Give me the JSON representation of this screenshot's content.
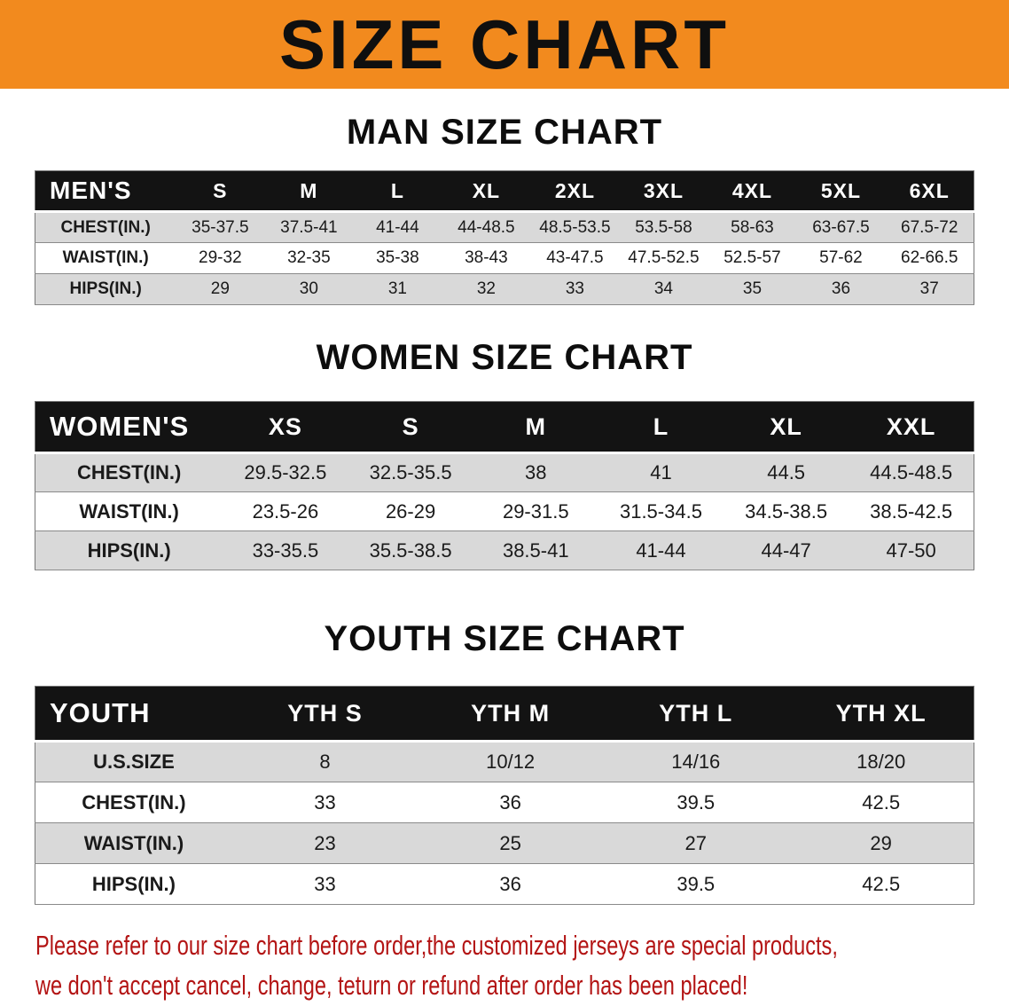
{
  "banner": {
    "title": "SIZE CHART",
    "bg_color": "#f28a1e"
  },
  "sections": [
    {
      "heading": "MAN SIZE CHART",
      "table": {
        "first_col": "MEN'S",
        "sizes": [
          "S",
          "M",
          "L",
          "XL",
          "2XL",
          "3XL",
          "4XL",
          "5XL",
          "6XL"
        ],
        "rows": [
          {
            "label": "CHEST(IN.)",
            "values": [
              "35-37.5",
              "37.5-41",
              "41-44",
              "44-48.5",
              "48.5-53.5",
              "53.5-58",
              "58-63",
              "63-67.5",
              "67.5-72"
            ]
          },
          {
            "label": "WAIST(IN.)",
            "values": [
              "29-32",
              "32-35",
              "35-38",
              "38-43",
              "43-47.5",
              "47.5-52.5",
              "52.5-57",
              "57-62",
              "62-66.5"
            ]
          },
          {
            "label": "HIPS(IN.)",
            "values": [
              "29",
              "30",
              "31",
              "32",
              "33",
              "34",
              "35",
              "36",
              "37"
            ]
          }
        ]
      }
    },
    {
      "heading": "WOMEN SIZE CHART",
      "table": {
        "first_col": "WOMEN'S",
        "sizes": [
          "XS",
          "S",
          "M",
          "L",
          "XL",
          "XXL"
        ],
        "rows": [
          {
            "label": "CHEST(IN.)",
            "values": [
              "29.5-32.5",
              "32.5-35.5",
              "38",
              "41",
              "44.5",
              "44.5-48.5"
            ]
          },
          {
            "label": "WAIST(IN.)",
            "values": [
              "23.5-26",
              "26-29",
              "29-31.5",
              "31.5-34.5",
              "34.5-38.5",
              "38.5-42.5"
            ]
          },
          {
            "label": "HIPS(IN.)",
            "values": [
              "33-35.5",
              "35.5-38.5",
              "38.5-41",
              "41-44",
              "44-47",
              "47-50"
            ]
          }
        ]
      }
    },
    {
      "heading": "YOUTH SIZE CHART",
      "table": {
        "first_col": "YOUTH",
        "sizes": [
          "YTH S",
          "YTH M",
          "YTH L",
          "YTH XL"
        ],
        "rows": [
          {
            "label": "U.S.SIZE",
            "values": [
              "8",
              "10/12",
              "14/16",
              "18/20"
            ]
          },
          {
            "label": "CHEST(IN.)",
            "values": [
              "33",
              "36",
              "39.5",
              "42.5"
            ]
          },
          {
            "label": "WAIST(IN.)",
            "values": [
              "23",
              "25",
              "27",
              "29"
            ]
          },
          {
            "label": "HIPS(IN.)",
            "values": [
              "33",
              "36",
              "39.5",
              "42.5"
            ]
          }
        ]
      }
    }
  ],
  "footer": {
    "color": "#b31414",
    "lines": [
      "Please refer to our size chart before order,the customized jerseys are special products,",
      "we don't accept cancel, change, teturn or refund after order has been placed!"
    ]
  }
}
